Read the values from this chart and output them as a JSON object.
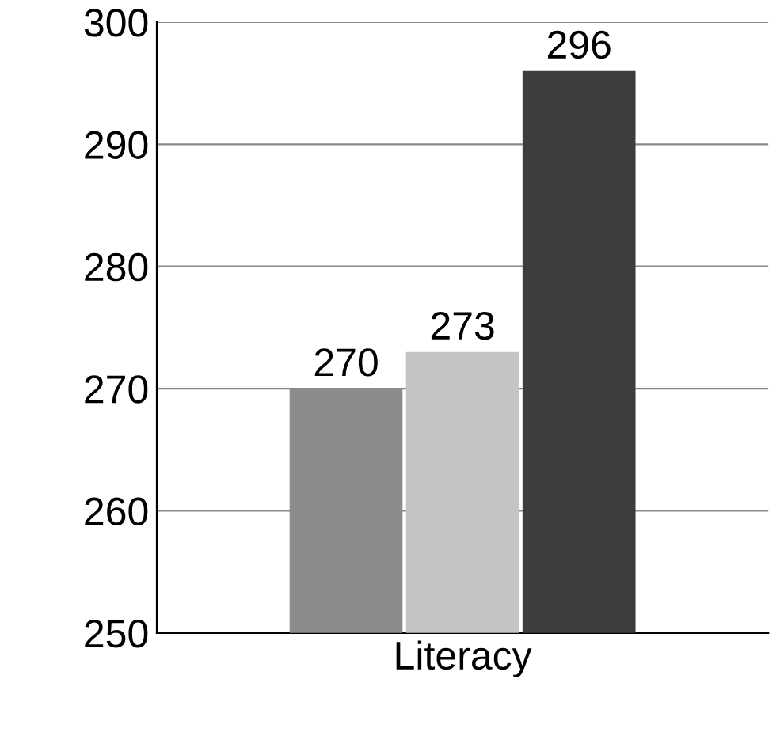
{
  "chart_data": {
    "type": "bar",
    "categories": [
      "Literacy"
    ],
    "series": [
      {
        "color": "#8c8c8c",
        "values": [
          270
        ]
      },
      {
        "color": "#c4c4c4",
        "values": [
          273
        ]
      },
      {
        "color": "#3c3c3c",
        "values": [
          296
        ]
      }
    ],
    "ylim": [
      250,
      300
    ],
    "yticks": [
      250,
      260,
      270,
      280,
      290,
      300
    ],
    "grid": "y",
    "data_labels": true
  }
}
